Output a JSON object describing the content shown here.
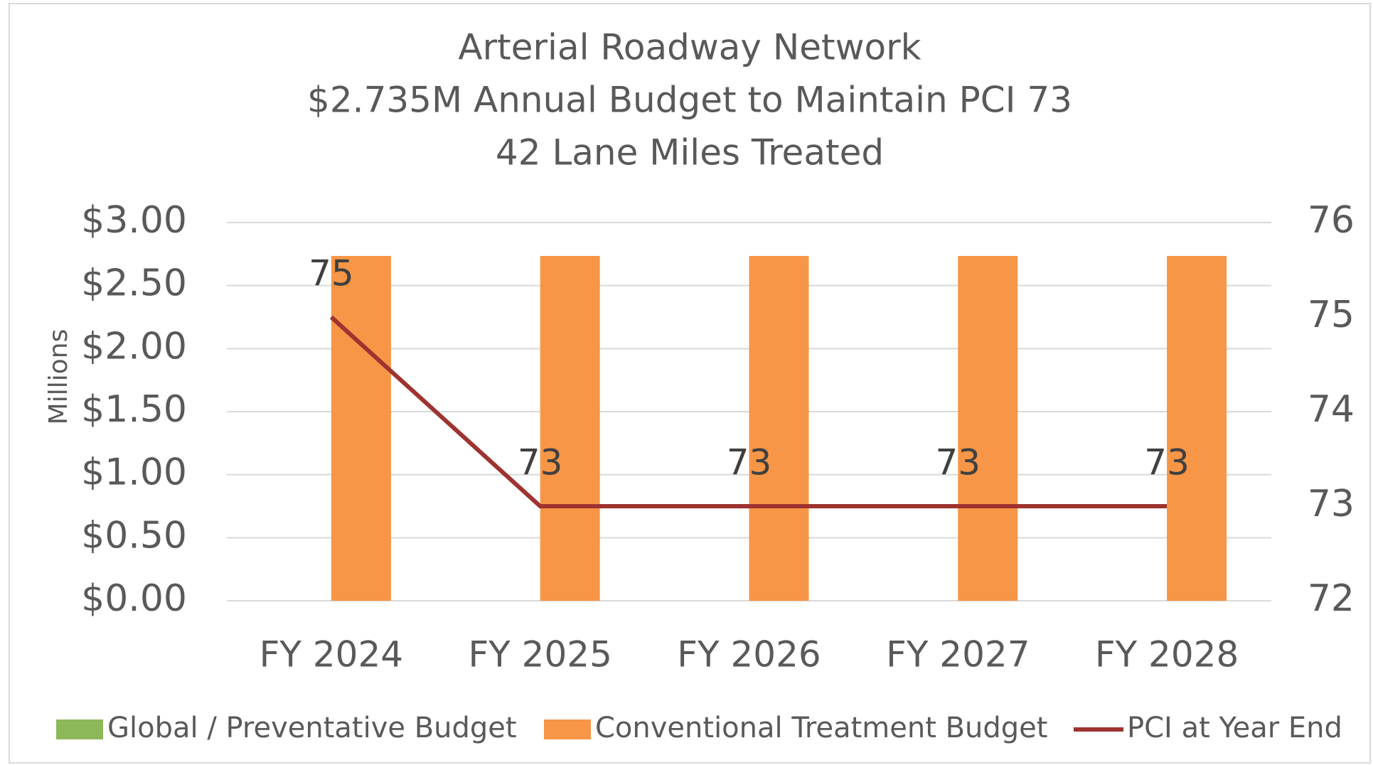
{
  "chart_data": {
    "type": "bar",
    "title_lines": [
      "Arterial Roadway Network",
      "$2.735M Annual Budget to Maintain PCI 73",
      "42 Lane Miles Treated"
    ],
    "ylabel": "Millions",
    "categories": [
      "FY 2024",
      "FY 2025",
      "FY 2026",
      "FY 2027",
      "FY 2028"
    ],
    "series": [
      {
        "name": "Global / Preventative Budget",
        "type": "bar",
        "color": "#8db85a",
        "values": [
          0,
          0,
          0,
          0,
          0
        ]
      },
      {
        "name": "Conventional Treatment Budget",
        "type": "bar",
        "color": "#f79646",
        "values": [
          2.735,
          2.735,
          2.735,
          2.735,
          2.735
        ]
      },
      {
        "name": "PCI at Year End",
        "type": "line",
        "axis": "y2",
        "color": "#9e3330",
        "data_labels": true,
        "values": [
          75,
          73,
          73,
          73,
          73
        ]
      }
    ],
    "ylim": [
      0,
      3
    ],
    "yticks": [
      {
        "value": 0,
        "label": "$0.00"
      },
      {
        "value": 0.5,
        "label": "$0.50"
      },
      {
        "value": 1,
        "label": "$1.00"
      },
      {
        "value": 1.5,
        "label": "$1.50"
      },
      {
        "value": 2,
        "label": "$2.00"
      },
      {
        "value": 2.5,
        "label": "$2.50"
      },
      {
        "value": 3,
        "label": "$3.00"
      }
    ],
    "y2lim": [
      72,
      76
    ],
    "y2ticks": [
      72,
      73,
      74,
      75,
      76
    ],
    "grid": true,
    "legend": "bottom"
  }
}
